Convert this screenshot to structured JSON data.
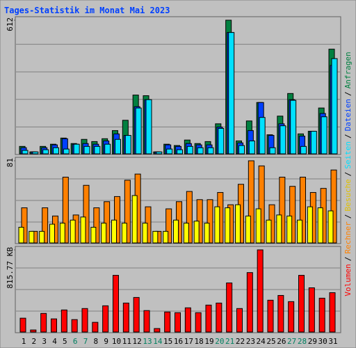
{
  "legend_separator": "/",
  "chart_data": [
    {
      "type": "bar",
      "title": "Tages-Statistik im Monat Mai 2023",
      "ylim": [
        0,
        612
      ],
      "yticks": [
        612
      ],
      "series": [
        {
          "name": "Anfragen",
          "color": "#008040",
          "values": [
            37,
            12,
            37,
            47,
            75,
            50,
            69,
            59,
            72,
            109,
            156,
            271,
            268,
            12,
            47,
            41,
            66,
            50,
            59,
            140,
            612,
            62,
            153,
            237,
            90,
            175,
            278,
            94,
            106,
            212,
            480
          ]
        },
        {
          "name": "Dateien",
          "color": "#0040ff",
          "values": [
            31,
            12,
            31,
            44,
            72,
            47,
            50,
            47,
            62,
            94,
            87,
            218,
            250,
            12,
            44,
            37,
            50,
            44,
            44,
            125,
            556,
            53,
            109,
            237,
            87,
            140,
            250,
            84,
            106,
            187,
            406
          ]
        },
        {
          "name": "Seiten",
          "color": "#00e0ff",
          "values": [
            19,
            12,
            22,
            31,
            25,
            47,
            37,
            37,
            47,
            69,
            87,
            212,
            250,
            12,
            25,
            22,
            37,
            31,
            31,
            119,
            556,
            41,
            62,
            169,
            31,
            131,
            247,
            37,
            106,
            172,
            437
          ]
        }
      ]
    },
    {
      "type": "bar",
      "ylim": [
        0,
        81
      ],
      "yticks": [
        81
      ],
      "series": [
        {
          "name": "Besuche",
          "color": "#ffff00",
          "values": [
            16,
            12,
            12,
            19,
            20,
            23,
            26,
            16,
            20,
            23,
            20,
            47,
            20,
            12,
            12,
            23,
            20,
            22,
            20,
            36,
            35,
            38,
            27,
            34,
            23,
            28,
            27,
            23,
            36,
            35,
            32
          ]
        },
        {
          "name": "Rechner",
          "color": "#ff8000",
          "values": [
            35,
            12,
            35,
            27,
            65,
            28,
            57,
            35,
            41,
            46,
            62,
            68,
            36,
            12,
            34,
            41,
            51,
            43,
            43,
            50,
            38,
            58,
            81,
            76,
            38,
            65,
            56,
            65,
            50,
            54,
            72
          ]
        }
      ]
    },
    {
      "type": "bar",
      "ylim": [
        0,
        815.77
      ],
      "yticks": [
        {
          "value": 815.77,
          "label": "815.77 KB"
        }
      ],
      "categories": [
        "1",
        "2",
        "3",
        "4",
        "5",
        "6",
        "7",
        "8",
        "9",
        "10",
        "11",
        "12",
        "13",
        "14",
        "15",
        "16",
        "17",
        "18",
        "19",
        "20",
        "21",
        "22",
        "23",
        "24",
        "25",
        "26",
        "27",
        "28",
        "29",
        "30",
        "31"
      ],
      "category_colors": [
        "#000",
        "#000",
        "#000",
        "#000",
        "#000",
        "#008060",
        "#008060",
        "#000",
        "#000",
        "#000",
        "#000",
        "#000",
        "#008060",
        "#008060",
        "#000",
        "#000",
        "#000",
        "#000",
        "#000",
        "#008060",
        "#008060",
        "#000",
        "#000",
        "#000",
        "#000",
        "#000",
        "#008060",
        "#008060",
        "#000",
        "#000",
        "#000"
      ],
      "series": [
        {
          "name": "Volumen",
          "color": "#ff0000",
          "values": [
            143,
            27,
            190,
            136,
            224,
            129,
            238,
            102,
            265,
            565,
            292,
            347,
            218,
            41,
            204,
            197,
            245,
            197,
            272,
            292,
            490,
            238,
            592,
            815.77,
            320,
            367,
            306,
            565,
            442,
            340,
            394
          ]
        }
      ]
    }
  ]
}
